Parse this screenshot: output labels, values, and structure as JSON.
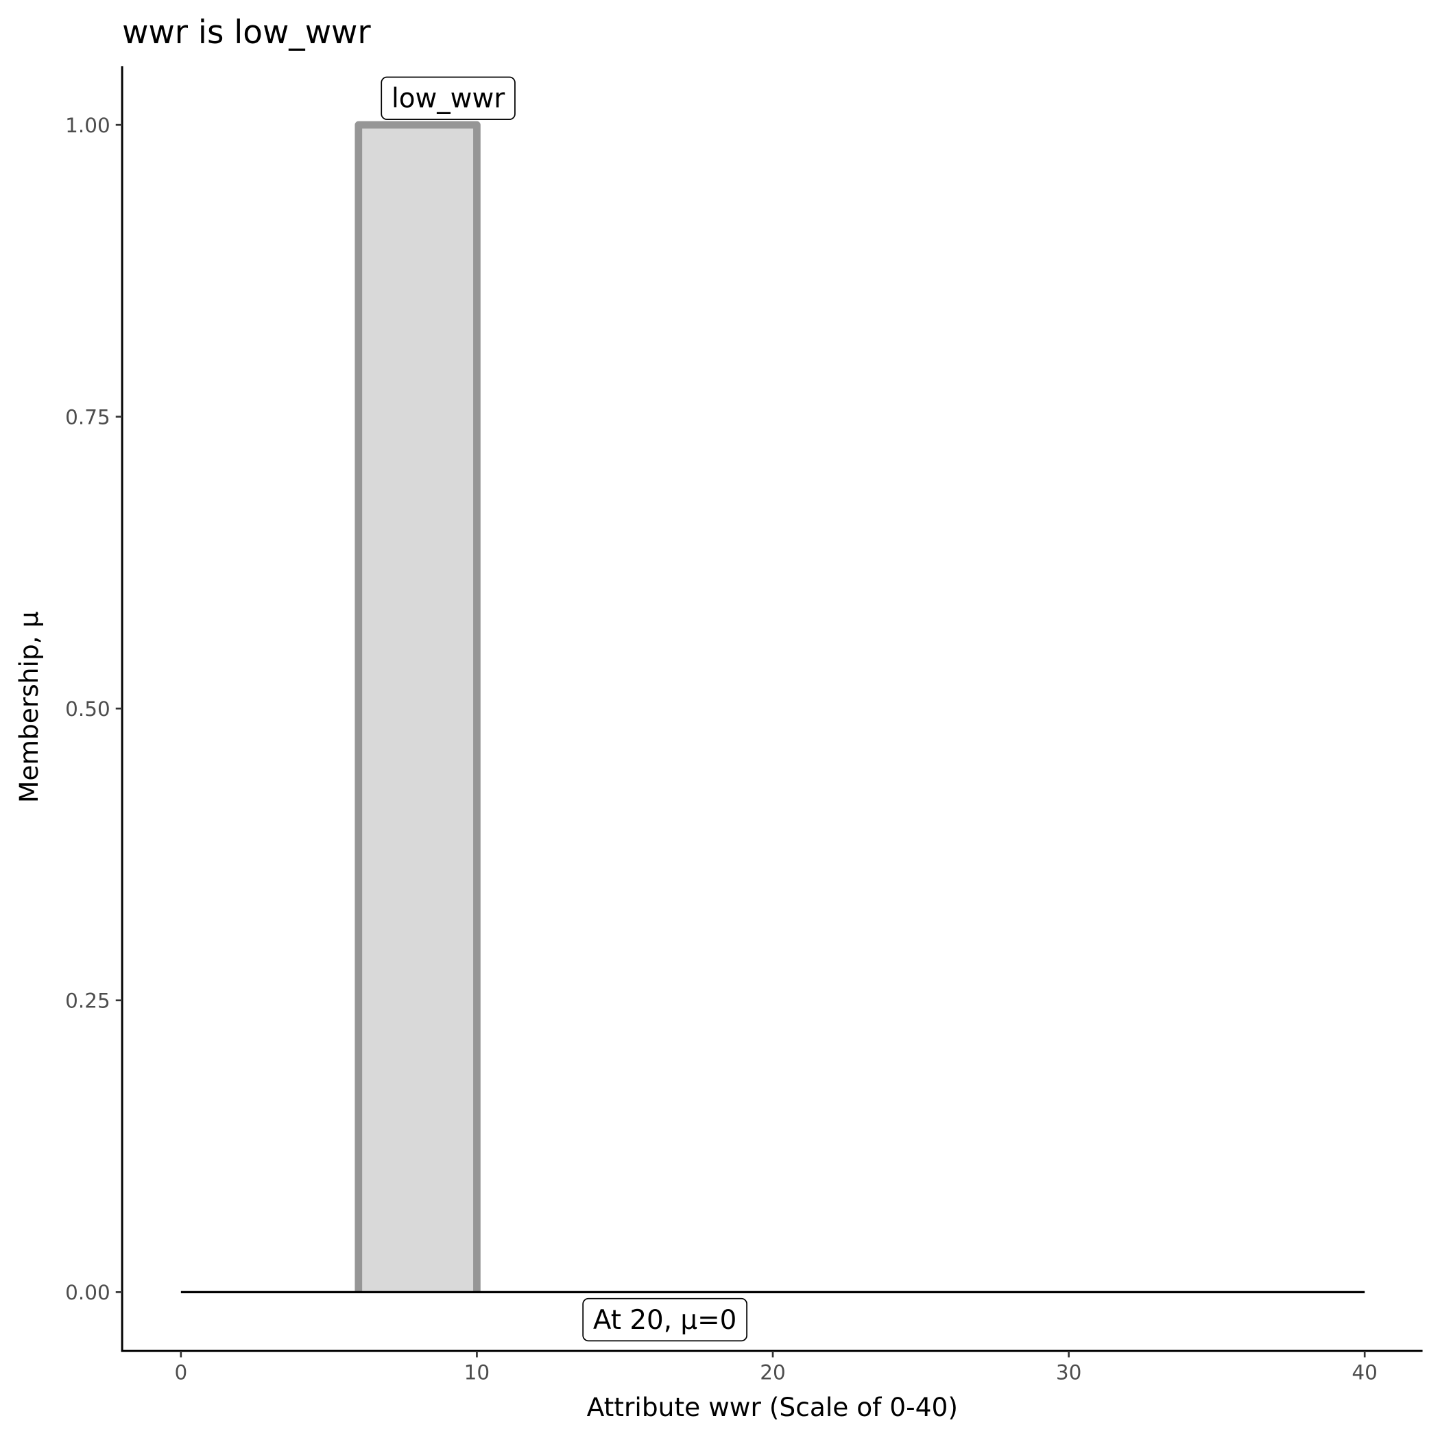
{
  "chart_data": {
    "type": "area",
    "title": "wwr is low_wwr",
    "xlabel": "Attribute wwr (Scale of 0-40)",
    "ylabel": "Membership, μ",
    "xlim": [
      -2,
      42
    ],
    "ylim": [
      -0.05,
      1.05
    ],
    "x_ticks": [
      "0",
      "10",
      "20",
      "30",
      "40"
    ],
    "x_tick_values": [
      0,
      10,
      20,
      30,
      40
    ],
    "y_ticks": [
      "0.00",
      "0.25",
      "0.50",
      "0.75",
      "1.00"
    ],
    "y_tick_values": [
      0,
      0.25,
      0.5,
      0.75,
      1.0
    ],
    "grid": false,
    "series": [
      {
        "name": "low_wwr",
        "x": [
          6,
          6,
          10,
          10
        ],
        "y": [
          0,
          1,
          1,
          0
        ],
        "fill": "#d9d9d9",
        "stroke": "#969696"
      }
    ],
    "baseline": {
      "x": [
        0,
        40
      ],
      "y": [
        0,
        0
      ],
      "color": "#000000"
    },
    "annotations": [
      {
        "text": "low_wwr",
        "x": 8.5,
        "y": 1.0
      },
      {
        "text": "At 20, μ=0",
        "x": 16.4,
        "y": -0.025
      }
    ]
  }
}
